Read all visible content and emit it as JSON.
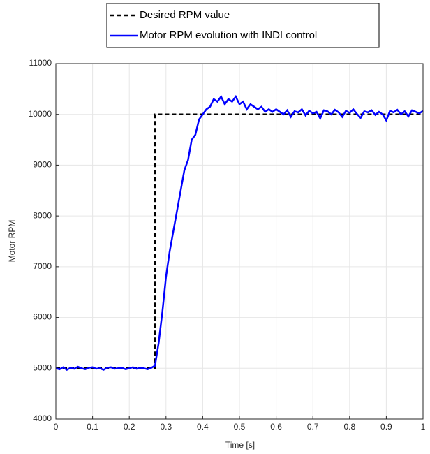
{
  "chart_data": {
    "type": "line",
    "xlabel": "Time [s]",
    "ylabel": "Motor RPM",
    "xlim": [
      0,
      1
    ],
    "ylim": [
      4000,
      11000
    ],
    "xticks": [
      0,
      0.1,
      0.2,
      0.3,
      0.4,
      0.5,
      0.6,
      0.7,
      0.8,
      0.9,
      1
    ],
    "yticks": [
      4000,
      5000,
      6000,
      7000,
      8000,
      9000,
      10000,
      11000
    ],
    "grid": true,
    "legend": "top",
    "series": [
      {
        "name": "Desired RPM value",
        "color": "#000000",
        "linestyle": "--",
        "x": [
          0,
          0.27,
          0.27,
          1
        ],
        "values": [
          5000,
          5000,
          10000,
          10000
        ]
      },
      {
        "name": "Motor RPM evolution with INDI control",
        "color": "#0000ff",
        "linestyle": "-",
        "x": [
          0,
          0.01,
          0.02,
          0.03,
          0.04,
          0.05,
          0.06,
          0.07,
          0.08,
          0.09,
          0.1,
          0.11,
          0.12,
          0.13,
          0.14,
          0.15,
          0.16,
          0.17,
          0.18,
          0.19,
          0.2,
          0.21,
          0.22,
          0.23,
          0.24,
          0.25,
          0.26,
          0.27,
          0.28,
          0.29,
          0.3,
          0.31,
          0.32,
          0.33,
          0.34,
          0.35,
          0.36,
          0.37,
          0.38,
          0.39,
          0.4,
          0.41,
          0.42,
          0.43,
          0.44,
          0.45,
          0.46,
          0.47,
          0.48,
          0.49,
          0.5,
          0.51,
          0.52,
          0.53,
          0.54,
          0.55,
          0.56,
          0.57,
          0.58,
          0.59,
          0.6,
          0.61,
          0.62,
          0.63,
          0.64,
          0.65,
          0.66,
          0.67,
          0.68,
          0.69,
          0.7,
          0.71,
          0.72,
          0.73,
          0.74,
          0.75,
          0.76,
          0.77,
          0.78,
          0.79,
          0.8,
          0.81,
          0.82,
          0.83,
          0.84,
          0.85,
          0.86,
          0.87,
          0.88,
          0.89,
          0.9,
          0.91,
          0.92,
          0.93,
          0.94,
          0.95,
          0.96,
          0.97,
          0.98,
          0.99,
          1
        ],
        "values": [
          5000,
          4980,
          5020,
          4970,
          5010,
          4990,
          5030,
          5000,
          4980,
          5010,
          5020,
          4990,
          5000,
          4970,
          5010,
          5020,
          4990,
          5000,
          5010,
          4980,
          5000,
          5020,
          4990,
          5010,
          5000,
          4980,
          5010,
          5050,
          5500,
          6100,
          6800,
          7300,
          7700,
          8100,
          8500,
          8900,
          9100,
          9500,
          9600,
          9900,
          10000,
          10100,
          10150,
          10300,
          10250,
          10350,
          10200,
          10300,
          10250,
          10350,
          10200,
          10250,
          10100,
          10200,
          10150,
          10100,
          10150,
          10050,
          10100,
          10050,
          10100,
          10050,
          10000,
          10080,
          9950,
          10060,
          10040,
          10100,
          9980,
          10070,
          10020,
          10050,
          9920,
          10080,
          10060,
          10000,
          10090,
          10040,
          9950,
          10070,
          10030,
          10100,
          10010,
          9930,
          10060,
          10040,
          10080,
          9990,
          10050,
          10000,
          9880,
          10070,
          10040,
          10090,
          10000,
          10060,
          9960,
          10080,
          10050,
          10020,
          10070
        ]
      }
    ]
  }
}
